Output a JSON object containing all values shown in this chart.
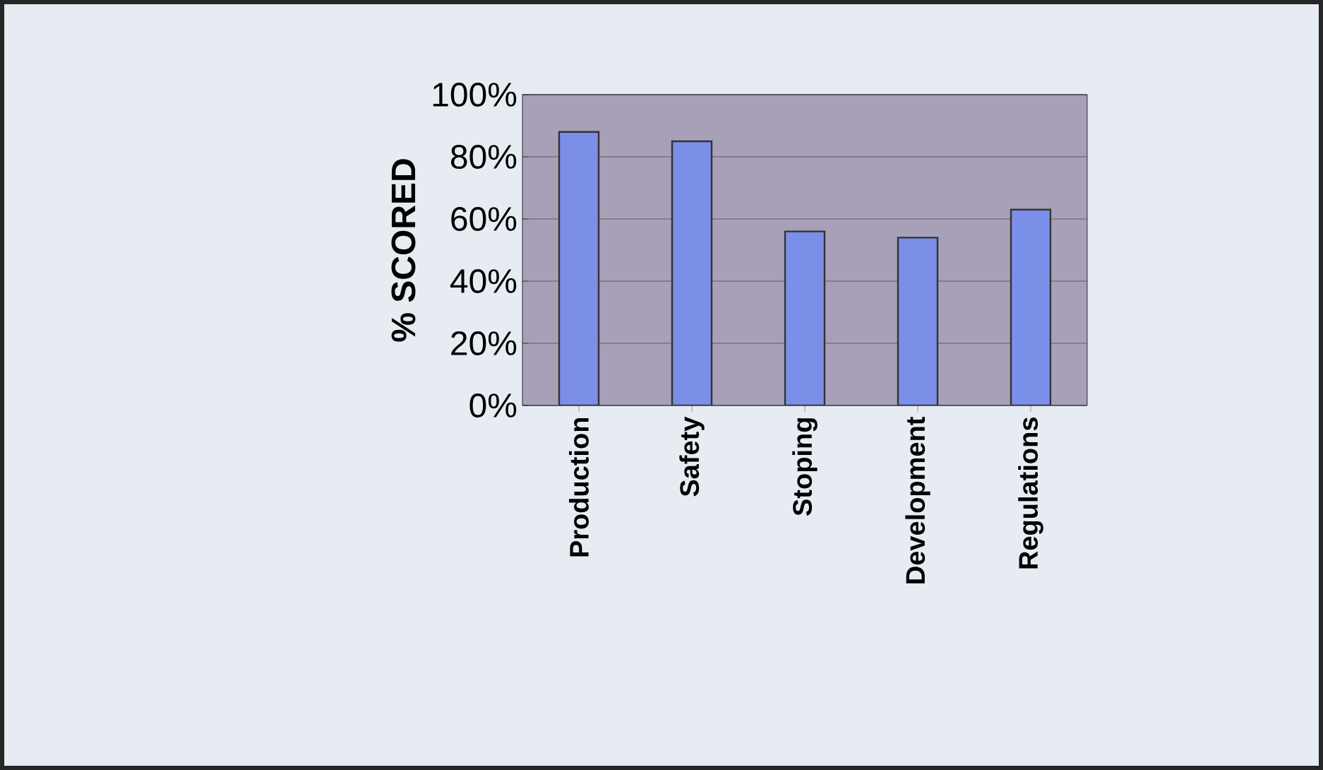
{
  "chart_data": {
    "type": "bar",
    "ylabel": "% SCORED",
    "categories": [
      "Production",
      "Safety",
      "Stoping",
      "Development",
      "Regulations"
    ],
    "values": [
      88,
      85,
      56,
      54,
      63
    ],
    "color": "#7b8ee8",
    "ylim": [
      0,
      100
    ],
    "yticks": [
      {
        "value": 0,
        "label": "0%"
      },
      {
        "value": 20,
        "label": "20%"
      },
      {
        "value": 40,
        "label": "40%"
      },
      {
        "value": 60,
        "label": "60%"
      },
      {
        "value": 80,
        "label": "80%"
      },
      {
        "value": 100,
        "label": "100%"
      }
    ],
    "grid": "y"
  }
}
